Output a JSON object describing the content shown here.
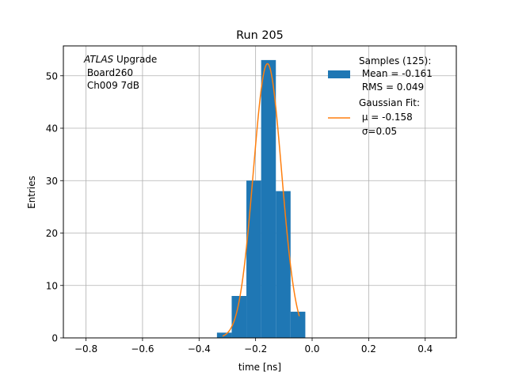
{
  "chart_data": {
    "type": "bar",
    "title": "Run 205",
    "xlabel": "time [ns]",
    "ylabel": "Entries",
    "xlim": [
      -0.88,
      0.51
    ],
    "ylim": [
      0,
      55.7
    ],
    "x_ticks": [
      -0.8,
      -0.6,
      -0.4,
      -0.2,
      0.0,
      0.2,
      0.4
    ],
    "x_tick_labels": [
      "−0.8",
      "−0.6",
      "−0.4",
      "−0.2",
      "0.0",
      "0.2",
      "0.4"
    ],
    "y_ticks": [
      0,
      10,
      20,
      30,
      40,
      50
    ],
    "y_tick_labels": [
      "0",
      "10",
      "20",
      "30",
      "40",
      "50"
    ],
    "grid": true,
    "legend_position": "top-right",
    "bin_edges": [
      -0.3367,
      -0.2846,
      -0.2325,
      -0.1804,
      -0.1283,
      -0.0762,
      -0.0241
    ],
    "counts": [
      1,
      8,
      30,
      53,
      28,
      5
    ],
    "series": [
      {
        "name": "Samples (125):",
        "kind": "histogram",
        "color": "#1f77b4",
        "legend_lines": [
          "Samples (125):",
          " Mean = -0.161",
          " RMS = 0.049"
        ]
      },
      {
        "name": "Gaussian Fit:",
        "kind": "line",
        "color": "#ff7f0e",
        "mu": -0.158,
        "sigma": 0.05,
        "amplitude": 52.3,
        "x_range": [
          -0.3167,
          -0.0454
        ],
        "legend_lines": [
          "Gaussian Fit:",
          " μ = -0.158",
          " σ=0.05"
        ]
      }
    ],
    "annotation": {
      "italic": "ATLAS",
      "rest": " Upgrade",
      "lines": [
        " Board260",
        " Ch009 7dB"
      ]
    }
  }
}
